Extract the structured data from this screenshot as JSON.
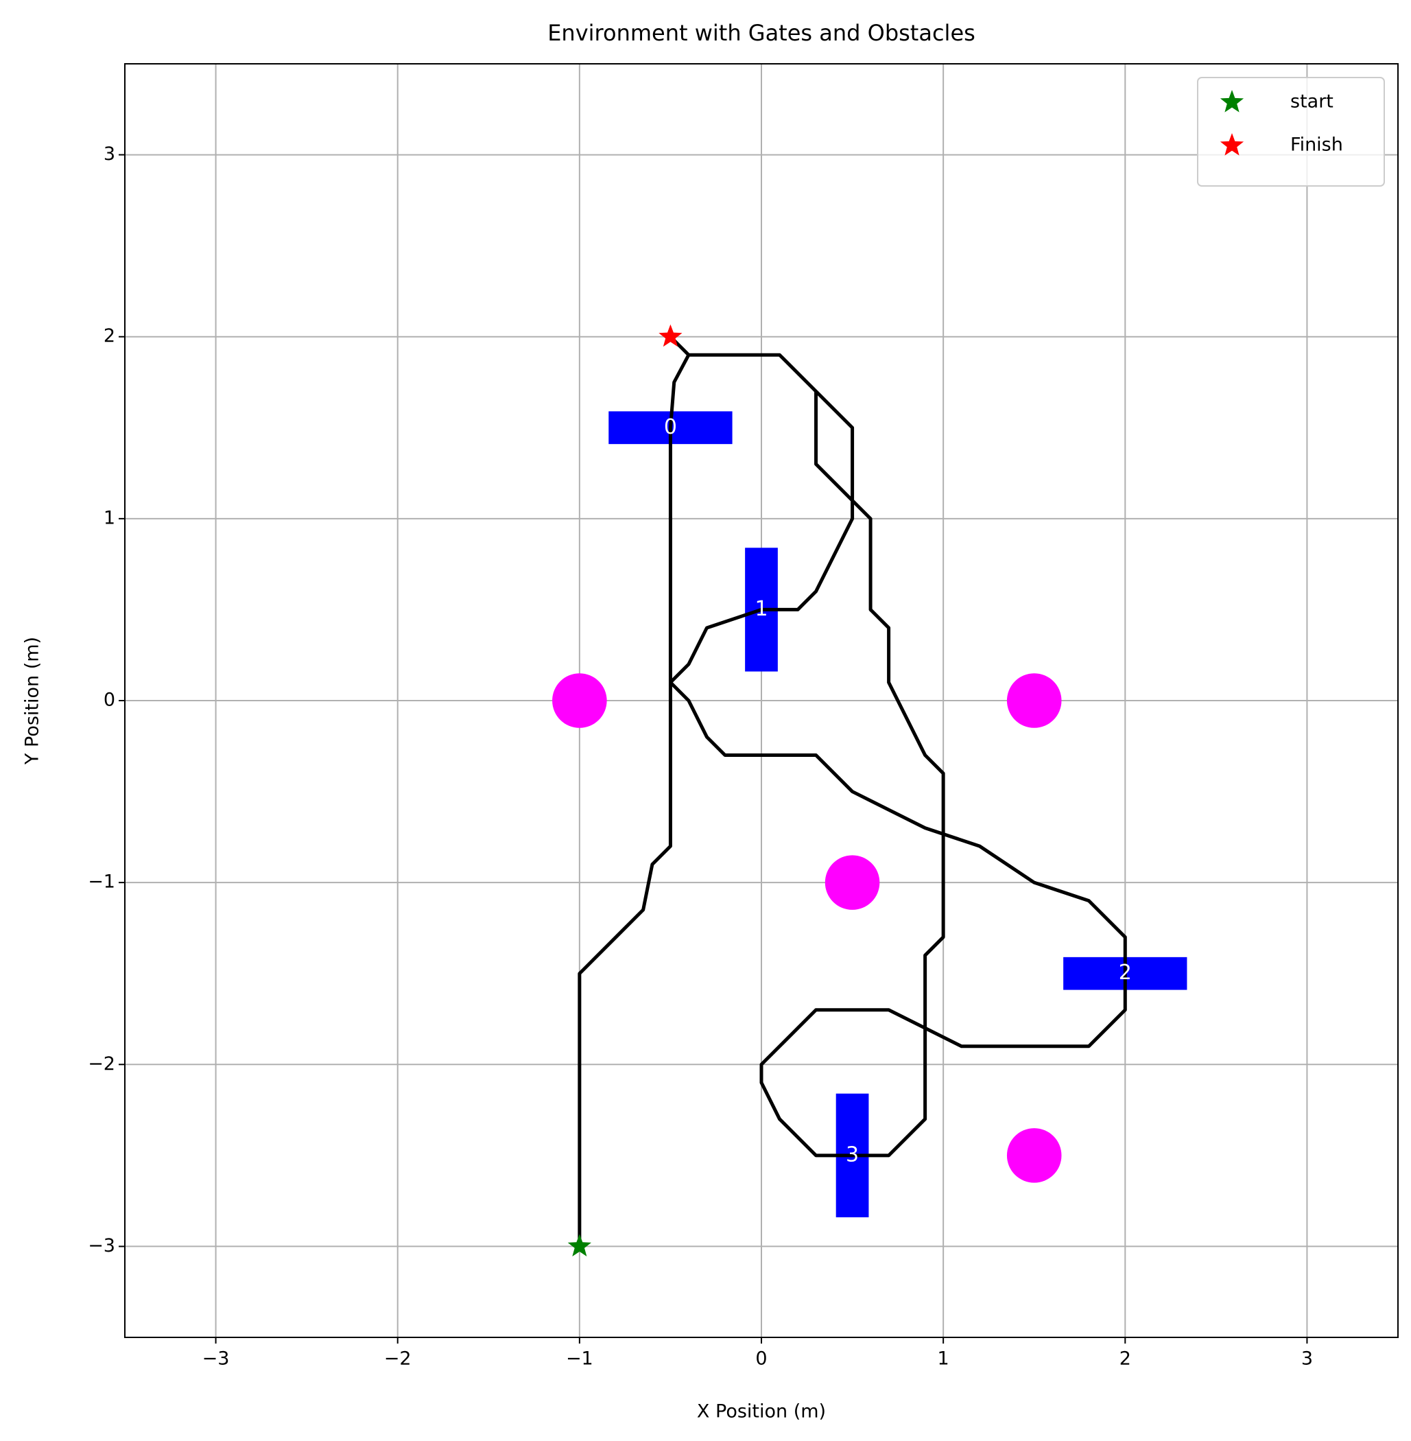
{
  "chart_data": {
    "type": "path",
    "title": "Environment with Gates and Obstacles",
    "xlabel": "X Position (m)",
    "ylabel": "Y Position (m)",
    "xlim": [
      -3.5,
      3.5
    ],
    "ylim": [
      -3.5,
      3.5
    ],
    "xticks": [
      {
        "value": -3,
        "label": "−3"
      },
      {
        "value": -2,
        "label": "−2"
      },
      {
        "value": -1,
        "label": "−1"
      },
      0,
      1,
      2,
      3
    ],
    "yticks": [
      {
        "value": -3,
        "label": "−3"
      },
      {
        "value": -2,
        "label": "−2"
      },
      {
        "value": -1,
        "label": "−1"
      },
      0,
      1,
      2,
      3
    ],
    "grid": true,
    "legend": "upper right",
    "gates": [
      {
        "label": "0",
        "x": -0.5,
        "y": 1.5,
        "width": 0.68,
        "height": 0.18,
        "color": "#0000ff"
      },
      {
        "label": "1",
        "x": 0,
        "y": 0.5,
        "width": 0.18,
        "height": 0.68,
        "color": "#0000ff"
      },
      {
        "label": "2",
        "x": 2,
        "y": -1.5,
        "width": 0.68,
        "height": 0.18,
        "color": "#0000ff"
      },
      {
        "label": "3",
        "x": 0.5,
        "y": -2.5,
        "width": 0.18,
        "height": 0.68,
        "color": "#0000ff"
      }
    ],
    "obstacles": {
      "color": "#ff00ff",
      "radius": 0.15,
      "x": [
        -1,
        1.5,
        0.5,
        1.5
      ],
      "y": [
        0,
        0,
        -1,
        -2.5
      ]
    },
    "path": {
      "color": "#000000",
      "x": [
        -1,
        -1,
        -0.95,
        -0.8,
        -0.65,
        -0.6,
        -0.5,
        -0.5,
        -0.5,
        -0.48,
        -0.4,
        0.1,
        0.3,
        0.5,
        0.5,
        0.4,
        0.3,
        0.2,
        0,
        -0.3,
        -0.4,
        -0.5,
        -0.4,
        -0.3,
        -0.2,
        0.3,
        0.5,
        0.7,
        0.9,
        1.2,
        1.5,
        1.8,
        2,
        2,
        2,
        1.8,
        1.1,
        0.9,
        0.7,
        0.3,
        0,
        0,
        0.1,
        0.3,
        0.5,
        0.7,
        0.9,
        0.9,
        1,
        1,
        0.9,
        0.7,
        0.7,
        0.6,
        0.6,
        0.5,
        0.3,
        0.3,
        0.1,
        -0.4,
        -0.45,
        -0.5
      ],
      "y": [
        -3,
        -1.5,
        -1.45,
        -1.3,
        -1.15,
        -0.9,
        -0.8,
        0.1,
        1.5,
        1.75,
        1.9,
        1.9,
        1.7,
        1.5,
        1.0,
        0.8,
        0.6,
        0.5,
        0.5,
        0.4,
        0.2,
        0.1,
        0,
        -0.2,
        -0.3,
        -0.3,
        -0.5,
        -0.6,
        -0.7,
        -0.8,
        -1,
        -1.1,
        -1.3,
        -1.5,
        -1.7,
        -1.9,
        -1.9,
        -1.8,
        -1.7,
        -1.7,
        -2.0,
        -2.1,
        -2.3,
        -2.5,
        -2.5,
        -2.5,
        -2.3,
        -1.4,
        -1.3,
        -0.4,
        -0.3,
        0.1,
        0.4,
        0.5,
        1.0,
        1.1,
        1.3,
        1.7,
        1.9,
        1.9,
        1.95,
        2
      ]
    },
    "markers": [
      {
        "name": "start",
        "color": "#008000",
        "x": -1,
        "y": -3
      },
      {
        "name": "Finish",
        "color": "#ff0000",
        "x": -0.5,
        "y": 2
      }
    ]
  }
}
